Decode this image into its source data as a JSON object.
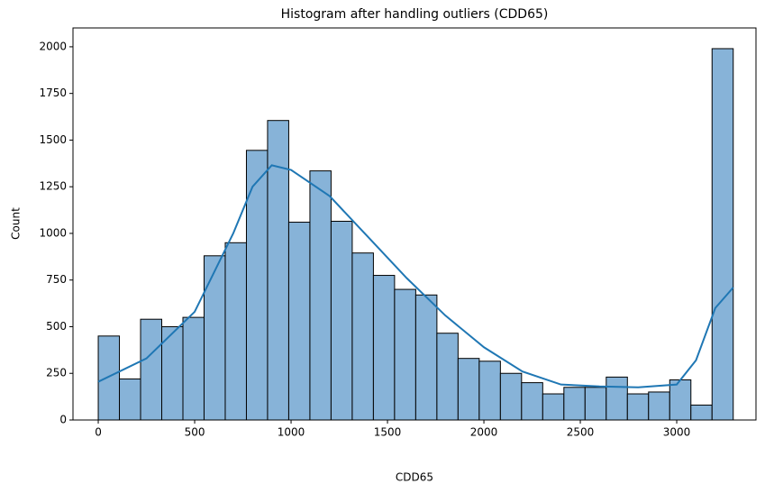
{
  "chart_data": {
    "type": "histogram",
    "title": "Histogram after handling outliers (CDD65)",
    "x_label": "CDD65",
    "y_label": "Count",
    "bins": [
      0,
      109.8,
      219.5,
      329.3,
      439.1,
      548.8,
      658.6,
      768.4,
      878.1,
      987.9,
      1097.7,
      1207.4,
      1317.2,
      1427,
      1536.7,
      1646.5,
      1756.3,
      1866,
      1975.8,
      2085.6,
      2195.3,
      2305.1,
      2414.9,
      2524.6,
      2634.4,
      2744.2,
      2853.9,
      2963.7,
      3073.5,
      3183.2,
      3293
    ],
    "counts": [
      450,
      220,
      540,
      500,
      550,
      880,
      950,
      1445,
      1605,
      1060,
      1335,
      1065,
      895,
      775,
      700,
      670,
      465,
      330,
      315,
      250,
      200,
      140,
      175,
      175,
      230,
      140,
      150,
      215,
      80,
      1990
    ],
    "color": "#87b3d8",
    "edge_color": "#000000",
    "kde": {
      "color": "#1f77b4",
      "x": [
        0,
        250,
        500,
        700,
        800,
        900,
        1000,
        1200,
        1400,
        1600,
        1800,
        2000,
        2200,
        2400,
        2600,
        2800,
        3000,
        3100,
        3200,
        3293
      ],
      "values": [
        205,
        330,
        580,
        1000,
        1250,
        1365,
        1340,
        1200,
        980,
        760,
        560,
        390,
        260,
        190,
        180,
        175,
        190,
        320,
        600,
        710
      ]
    },
    "xlim": [
      -131,
      3411
    ],
    "ylim": [
      0,
      2101
    ],
    "xticks": [
      0,
      500,
      1000,
      1500,
      2000,
      2500,
      3000
    ],
    "yticks": [
      0,
      250,
      500,
      750,
      1000,
      1250,
      1500,
      1750,
      2000
    ]
  }
}
